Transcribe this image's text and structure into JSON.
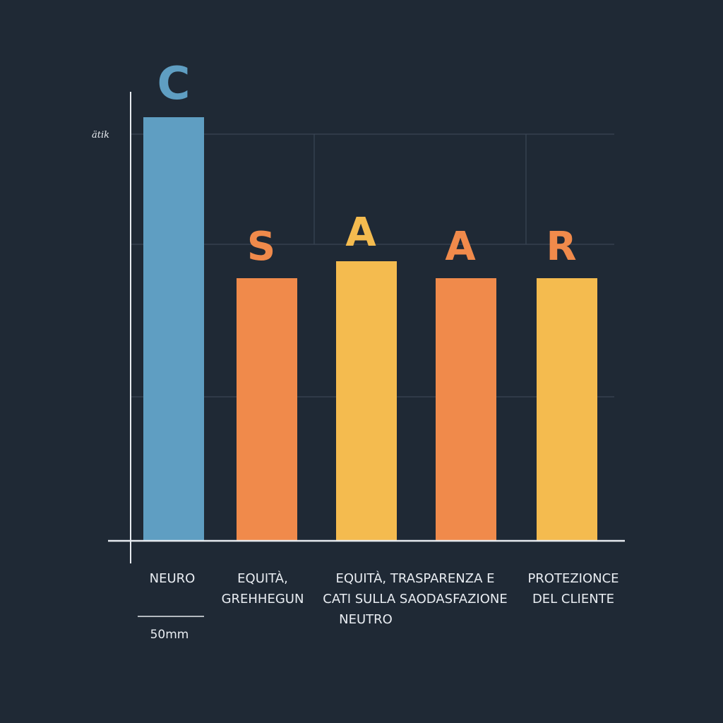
{
  "chart_data": {
    "type": "bar",
    "categories": [
      [
        "NEURO"
      ],
      [
        "EQUITÀ,",
        "GREHHEGUN"
      ],
      [
        "EQUITÀ, TRASPARENZA E",
        "CATI SULLA SAODASFAZIONE",
        "NEUTRO"
      ],
      [
        ""
      ],
      [
        "PROTEZIONCE",
        "DEL CLIENTE"
      ]
    ],
    "values": [
      100,
      62,
      66,
      62,
      62
    ],
    "bar_letters": [
      "C",
      "S",
      "A",
      "A",
      "R"
    ],
    "colors": [
      "#5f9ec2",
      "#f08a4b",
      "#f4bb4f",
      "#f08a4b",
      "#f4bb4f"
    ],
    "letter_colors": [
      "#5f9ec2",
      "#f08a4b",
      "#f4bb4f",
      "#f08a4b",
      "#f08a4b"
    ],
    "ylim": [
      0,
      106
    ],
    "gridlines": [
      34,
      70,
      96
    ],
    "y_tick_label": "ätik",
    "y_tick_value": 96,
    "grid": true,
    "scale_bar_label": "50mm",
    "title": "",
    "xlabel": "",
    "ylabel": ""
  },
  "style": {
    "background": "#1f2935",
    "axis_color": "#e6eaef",
    "grid_color": "#3a4654"
  }
}
